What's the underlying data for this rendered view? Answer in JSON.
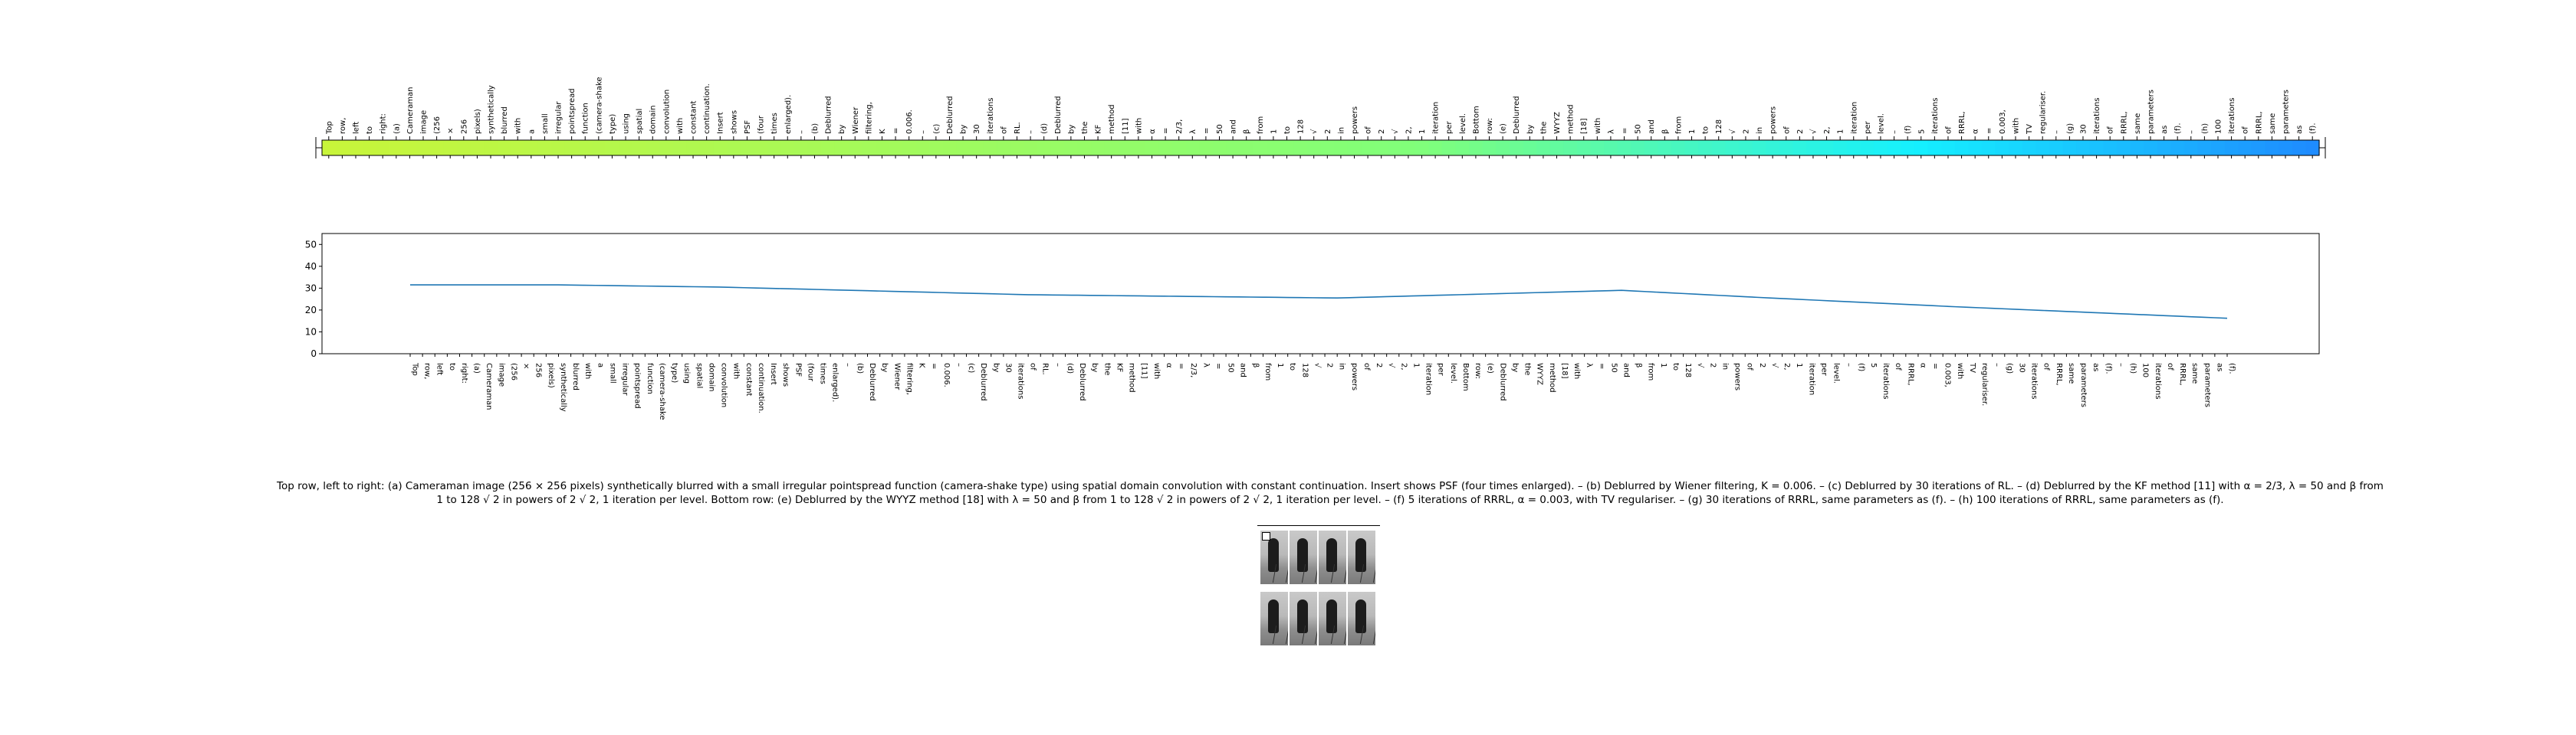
{
  "chart_data": [
    {
      "type": "heatmap",
      "categories": [
        "Top",
        "row,",
        "left",
        "to",
        "right:",
        "(a)",
        "Cameraman",
        "image",
        "(256",
        "×",
        "256",
        "pixels)",
        "synthetically",
        "blurred",
        "with",
        "a",
        "small",
        "irregular",
        "pointspread",
        "function",
        "(camera-shake",
        "type)",
        "using",
        "spatial",
        "domain",
        "convolution",
        "with",
        "constant",
        "continuation.",
        "Insert",
        "shows",
        "PSF",
        "(four",
        "times",
        "enlarged).",
        "–",
        "(b)",
        "Deblurred",
        "by",
        "Wiener",
        "filtering,",
        "K",
        "=",
        "0.006.",
        "–",
        "(c)",
        "Deblurred",
        "by",
        "30",
        "iterations",
        "of",
        "RL.",
        "–",
        "(d)",
        "Deblurred",
        "by",
        "the",
        "KF",
        "method",
        "[11]",
        "with",
        "α",
        "=",
        "2/3,",
        "λ",
        "=",
        "50",
        "and",
        "β",
        "from",
        "1",
        "to",
        "128",
        "√",
        "2",
        "in",
        "powers",
        "of",
        "2",
        "√",
        "2,",
        "1",
        "iteration",
        "per",
        "level.",
        "Bottom",
        "row:",
        "(e)",
        "Deblurred",
        "by",
        "the",
        "WYYZ",
        "method",
        "[18]",
        "with",
        "λ",
        "=",
        "50",
        "and",
        "β",
        "from",
        "1",
        "to",
        "128",
        "√",
        "2",
        "in",
        "powers",
        "of",
        "2",
        "√",
        "2,",
        "1",
        "iteration",
        "per",
        "level.",
        "–",
        "(f)",
        "5",
        "iterations",
        "of",
        "RRRL,",
        "α",
        "=",
        "0.003,",
        "with",
        "TV",
        "regulariser.",
        "–",
        "(g)",
        "30",
        "iterations",
        "of",
        "RRRL,",
        "same",
        "parameters",
        "as",
        "(f).",
        "–",
        "(h)",
        "100",
        "iterations",
        "of",
        "RRRL,",
        "same",
        "parameters",
        "as",
        "(f)."
      ]
    },
    {
      "type": "line",
      "ylim": [
        0,
        55
      ],
      "yticks": [
        0,
        10,
        20,
        30,
        40,
        50
      ],
      "categories": [
        "Top",
        "row,",
        "left",
        "to",
        "right:",
        "(a)",
        "Cameraman",
        "image",
        "(256",
        "×",
        "256",
        "pixels)",
        "synthetically",
        "blurred",
        "with",
        "a",
        "small",
        "irregular",
        "pointspread",
        "function",
        "(camera-shake",
        "type)",
        "using",
        "spatial",
        "domain",
        "convolution",
        "with",
        "constant",
        "continuation.",
        "Insert",
        "shows",
        "PSF",
        "(four",
        "times",
        "enlarged).",
        "–",
        "(b)",
        "Deblurred",
        "by",
        "Wiener",
        "filtering,",
        "K",
        "=",
        "0.006.",
        "–",
        "(c)",
        "Deblurred",
        "by",
        "30",
        "iterations",
        "of",
        "RL.",
        "–",
        "(d)",
        "Deblurred",
        "by",
        "the",
        "KF",
        "method",
        "[11]",
        "with",
        "α",
        "=",
        "2/3,",
        "λ",
        "=",
        "50",
        "and",
        "β",
        "from",
        "1",
        "to",
        "128",
        "√",
        "2",
        "in",
        "powers",
        "of",
        "2",
        "√",
        "2,",
        "1",
        "iteration",
        "per",
        "level.",
        "Bottom",
        "row:",
        "(e)",
        "Deblurred",
        "by",
        "the",
        "WYYZ",
        "method",
        "[18]",
        "with",
        "λ",
        "=",
        "50",
        "and",
        "β",
        "from",
        "1",
        "to",
        "128",
        "√",
        "2",
        "in",
        "powers",
        "of",
        "2",
        "√",
        "2,",
        "1",
        "iteration",
        "per",
        "level.",
        "–",
        "(f)",
        "5",
        "iterations",
        "of",
        "RRRL,",
        "α",
        "=",
        "0.003,",
        "with",
        "TV",
        "regulariser.",
        "–",
        "(g)",
        "30",
        "iterations",
        "of",
        "RRRL,",
        "same",
        "parameters",
        "as",
        "(f).",
        "–",
        "(h)",
        "100",
        "iterations",
        "of",
        "RRRL,",
        "same",
        "parameters",
        "as",
        "(f)."
      ],
      "knots": [
        [
          0,
          31.5
        ],
        [
          12,
          31.5
        ],
        [
          25,
          30.5
        ],
        [
          50,
          27
        ],
        [
          75,
          25.5
        ],
        [
          98,
          29
        ],
        [
          110,
          25.5
        ],
        [
          125,
          21.5
        ],
        [
          150,
          15.5
        ]
      ]
    }
  ],
  "caption": "Top row, left to right: (a) Cameraman image (256 × 256 pixels) synthetically blurred with a small irregular pointspread function (camera-shake type) using spatial domain convolution with constant continuation. Insert shows PSF (four times enlarged). – (b) Deblurred by Wiener filtering, K = 0.006. – (c) Deblurred by 30 iterations of RL. – (d) Deblurred by the KF method [11] with α = 2/3, λ = 50 and β from 1 to 128 √ 2 in powers of 2 √ 2, 1 iteration per level. Bottom row: (e) Deblurred by the WYYZ method [18] with λ = 50 and β from 1 to 128 √ 2 in powers of 2 √ 2, 1 iteration per level. – (f) 5 iterations of RRRL, α = 0.003, with TV regulariser. – (g) 30 iterations of RRRL, same parameters as (f). – (h) 100 iterations of RRRL, same parameters as (f).",
  "colors": {
    "line": "#1f77b4",
    "heat_start": "#c8f53a",
    "heat_mid": "#80ff7a",
    "heat_cyan": "#15f0ff",
    "heat_end": "#1e8cff"
  }
}
